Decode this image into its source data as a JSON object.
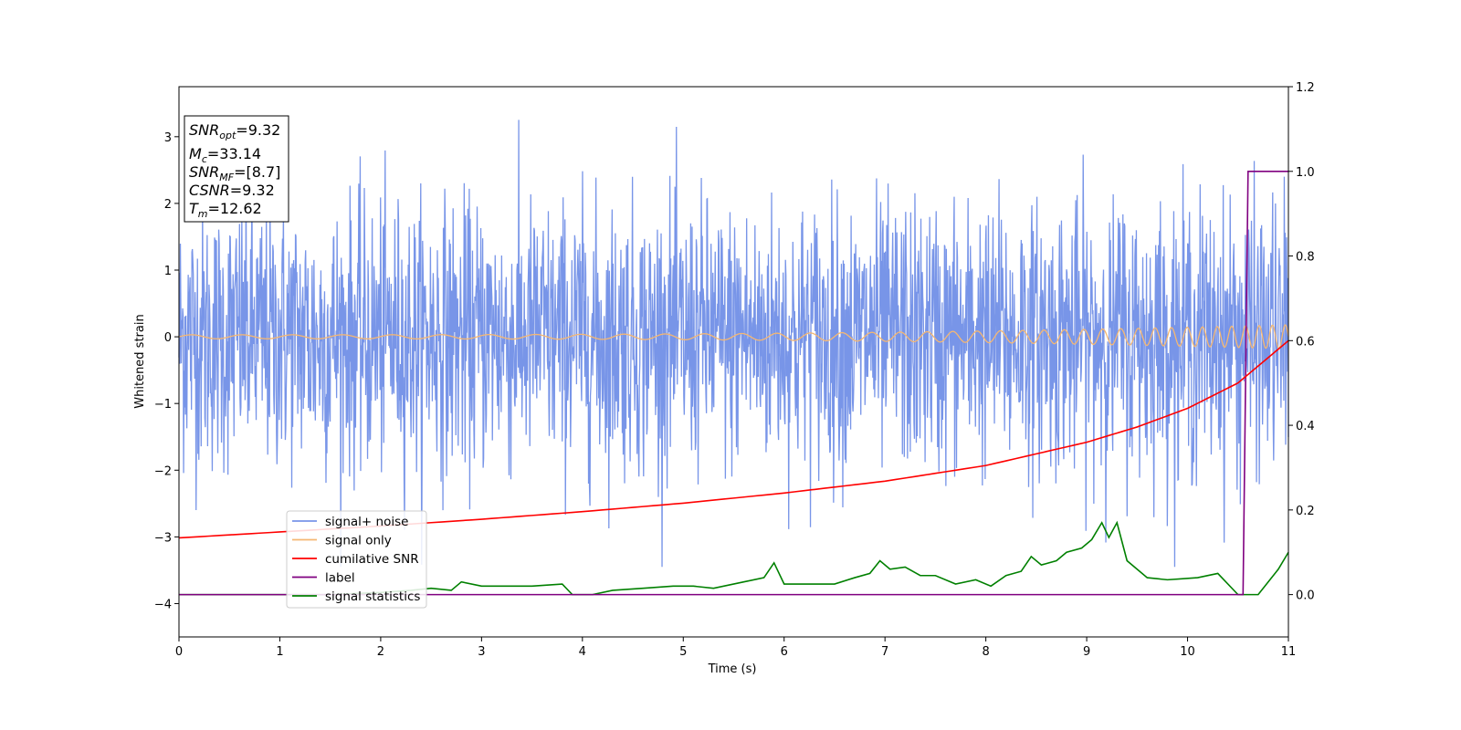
{
  "chart_data": {
    "type": "line",
    "xlabel": "Time (s)",
    "ylabel": "Whitened strain",
    "xlim": [
      0,
      11
    ],
    "ylim": [
      -4.5,
      3.75
    ],
    "y2lim": [
      -0.1,
      1.2
    ],
    "x_ticks": [
      "0",
      "1",
      "2",
      "3",
      "4",
      "5",
      "6",
      "7",
      "8",
      "9",
      "10",
      "11"
    ],
    "y_ticks": [
      "−4",
      "−3",
      "−2",
      "−1",
      "0",
      "1",
      "2",
      "3"
    ],
    "y2_ticks": [
      "0.0",
      "0.2",
      "0.4",
      "0.6",
      "0.8",
      "1.0",
      "1.2"
    ],
    "grid": false,
    "legend_position": "lower-left",
    "annotation": {
      "snr_opt": {
        "base": "SNR",
        "sub": "opt",
        "value": "=9.32"
      },
      "mc": {
        "base": "M",
        "sub": "c",
        "value": "=33.14"
      },
      "snr_mf": {
        "base": "SNR",
        "sub": "MF",
        "value": "=[8.7]"
      },
      "csnr": {
        "base": "CSNR",
        "value": "=9.32"
      },
      "tm": {
        "base": "T",
        "sub": "m",
        "value": "=12.62"
      }
    },
    "series": [
      {
        "name": "signal+ noise",
        "axis": "left",
        "color": "#7895e8",
        "description_stats": {
          "mean": 0.0,
          "std": 1.0,
          "min": -3.45,
          "max": 3.37
        }
      },
      {
        "name": "signal only",
        "axis": "left",
        "color": "#f5b772",
        "amplitude_start": 0.03,
        "amplitude_end": 0.18,
        "freq_start_hz": 2.0,
        "freq_end_hz": 8.0
      },
      {
        "name": "cumilative SNR",
        "axis": "right",
        "color": "#ff0000",
        "x": [
          0,
          1,
          2,
          3,
          4,
          5,
          6,
          7,
          8,
          9,
          9.5,
          10,
          10.5,
          11
        ],
        "values": [
          0.134,
          0.148,
          0.162,
          0.178,
          0.196,
          0.216,
          0.24,
          0.268,
          0.305,
          0.36,
          0.396,
          0.44,
          0.5,
          0.6
        ]
      },
      {
        "name": "label",
        "axis": "right",
        "color": "#800080",
        "x": [
          0,
          10.55,
          10.6,
          11
        ],
        "values": [
          0.0,
          0.0,
          1.0,
          1.0
        ]
      },
      {
        "name": "signal statistics",
        "axis": "right",
        "color": "#008000",
        "x": [
          0,
          0.5,
          1,
          1.5,
          2,
          2.3,
          2.5,
          2.7,
          2.8,
          3.0,
          3.2,
          3.5,
          3.8,
          3.9,
          4.1,
          4.3,
          4.6,
          4.9,
          5.1,
          5.3,
          5.6,
          5.8,
          5.9,
          6.0,
          6.2,
          6.5,
          6.7,
          6.85,
          6.95,
          7.05,
          7.2,
          7.35,
          7.5,
          7.7,
          7.9,
          8.05,
          8.2,
          8.35,
          8.45,
          8.55,
          8.7,
          8.8,
          8.95,
          9.05,
          9.15,
          9.22,
          9.3,
          9.4,
          9.6,
          9.8,
          10.1,
          10.3,
          10.5,
          10.7,
          10.9,
          11.0
        ],
        "values": [
          0.0,
          0.0,
          0.0,
          0.0,
          0.005,
          0.01,
          0.015,
          0.01,
          0.03,
          0.02,
          0.02,
          0.02,
          0.025,
          0.0,
          0.0,
          0.01,
          0.015,
          0.02,
          0.02,
          0.015,
          0.03,
          0.04,
          0.075,
          0.025,
          0.025,
          0.025,
          0.04,
          0.05,
          0.08,
          0.06,
          0.065,
          0.045,
          0.045,
          0.025,
          0.035,
          0.02,
          0.045,
          0.055,
          0.09,
          0.07,
          0.08,
          0.1,
          0.11,
          0.13,
          0.17,
          0.135,
          0.17,
          0.08,
          0.04,
          0.035,
          0.04,
          0.05,
          0.0,
          0.0,
          0.06,
          0.1
        ]
      }
    ]
  }
}
